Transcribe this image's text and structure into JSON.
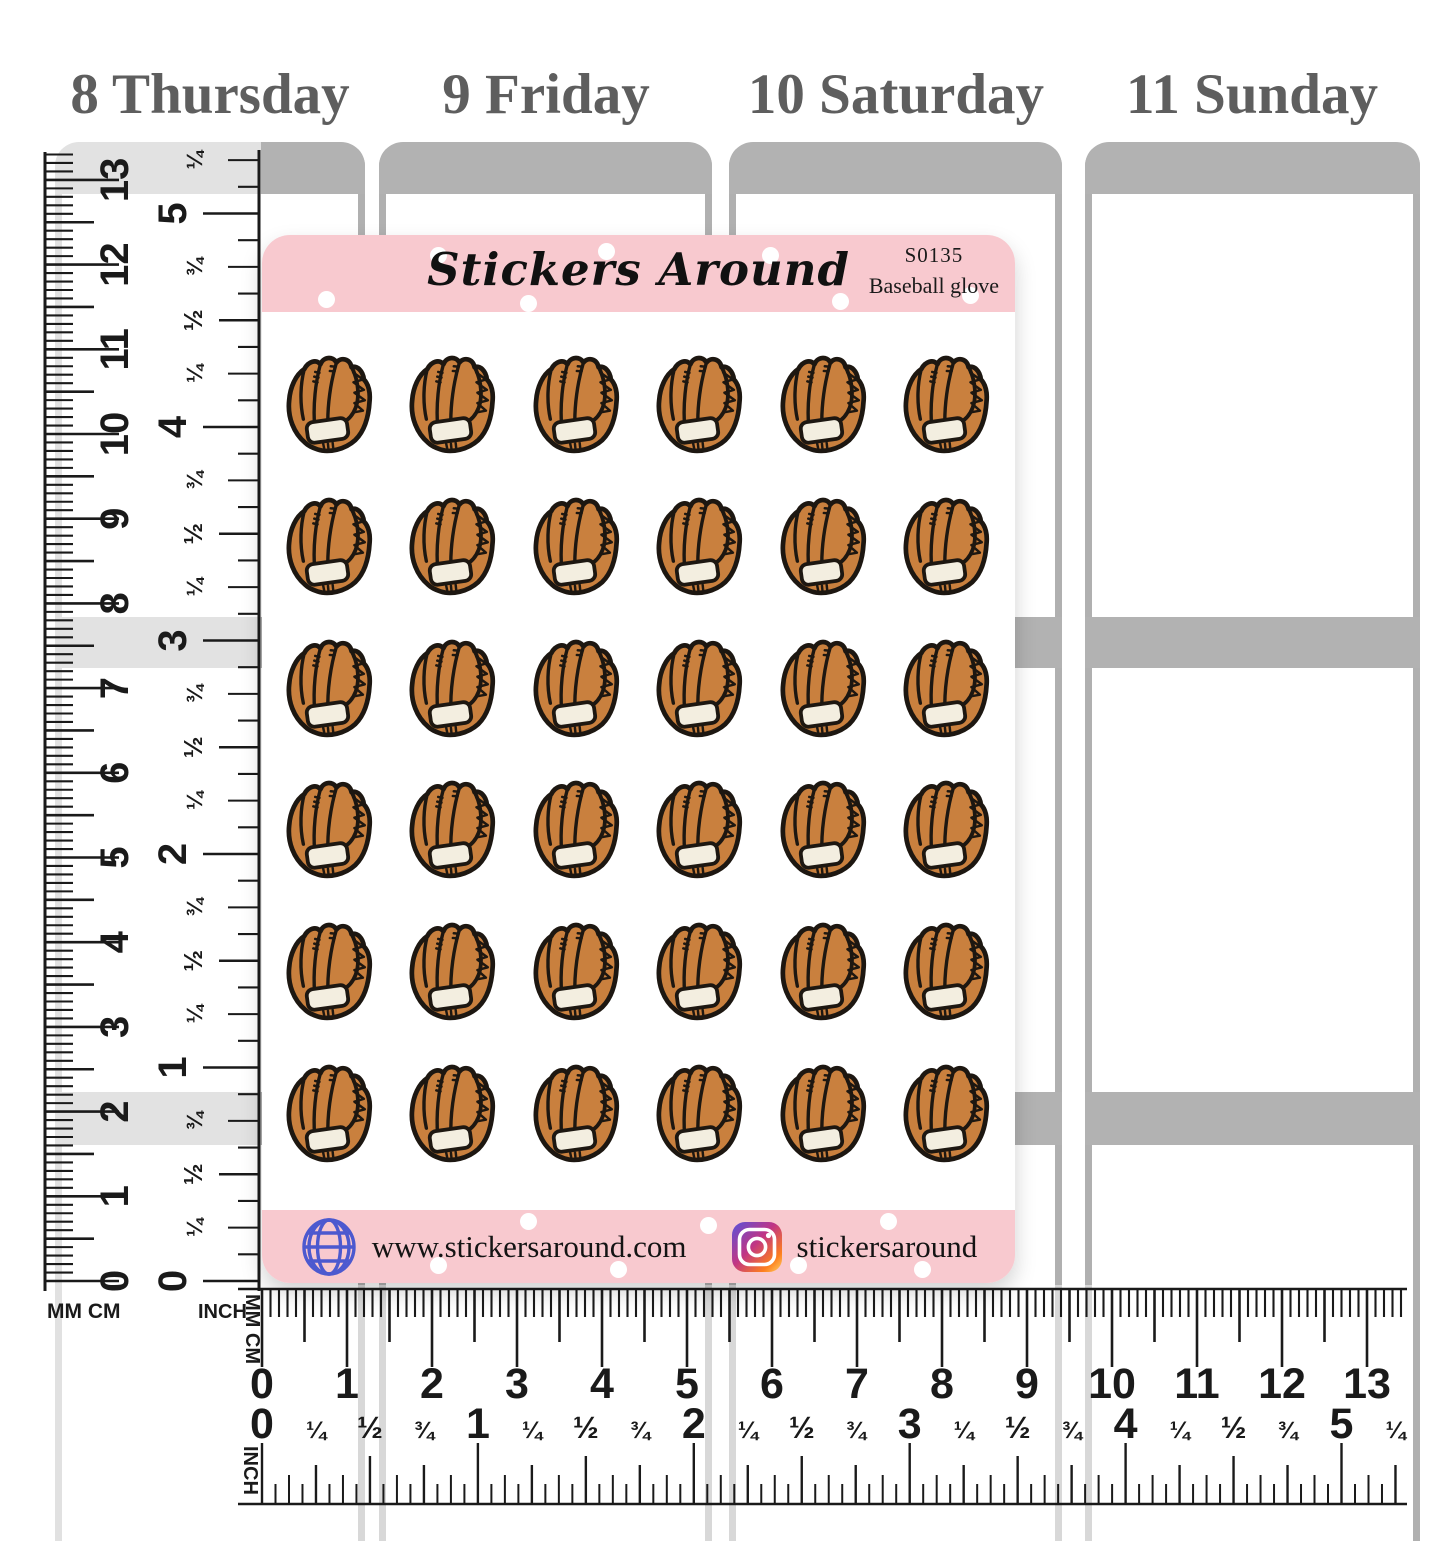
{
  "planner": {
    "days": [
      {
        "label": "8 Thursday"
      },
      {
        "label": "9 Friday"
      },
      {
        "label": "10 Saturday"
      },
      {
        "label": "11 Sunday"
      }
    ],
    "colors": {
      "band_gray": "#b2b2b2",
      "header_text_gray": "#5e5e5e",
      "page_bg": "#ffffff"
    }
  },
  "sticker_sheet": {
    "brand": "Stickers Around",
    "code": "S0135",
    "product_name": "Baseball glove",
    "website": "www.stickersaround.com",
    "instagram_handle": "stickersaround",
    "grid": {
      "rows": 6,
      "cols": 6,
      "icon": "baseball-glove",
      "count": 36
    },
    "colors": {
      "header_pink": "#f8c9cf",
      "polka_dot": "#ffffff",
      "glove_leather": "#c9803e",
      "glove_outline": "#1d1711",
      "glove_patch": "#f3eee0",
      "globe_blue": "#4c59cf",
      "instagram_gradient": [
        "#5851db",
        "#c13584",
        "#fd7e1e",
        "#ffd264"
      ]
    }
  },
  "rulers": {
    "left_cm": {
      "unit_label": "MM CM",
      "numbers": [
        "0",
        "1",
        "2",
        "3",
        "4",
        "5",
        "6",
        "7",
        "8",
        "9",
        "10",
        "11",
        "12",
        "13"
      ]
    },
    "left_inch": {
      "unit_label": "INCH",
      "whole_numbers": [
        "0",
        "1",
        "2",
        "3",
        "4",
        "5"
      ],
      "fraction_labels": [
        "¼",
        "½",
        "¾"
      ],
      "top_extra": "¼"
    },
    "bottom_cm": {
      "unit_label": "MM CM",
      "numbers": [
        "0",
        "1",
        "2",
        "3",
        "4",
        "5",
        "6",
        "7",
        "8",
        "9",
        "10",
        "11",
        "12",
        "13"
      ]
    },
    "bottom_inch": {
      "unit_label": "INCH",
      "whole_numbers": [
        "0",
        "1",
        "2",
        "3",
        "4",
        "5"
      ],
      "fraction_labels": [
        "¼",
        "½",
        "¾"
      ],
      "trailing": "¼"
    },
    "tick_color": "#1a1a1a"
  }
}
